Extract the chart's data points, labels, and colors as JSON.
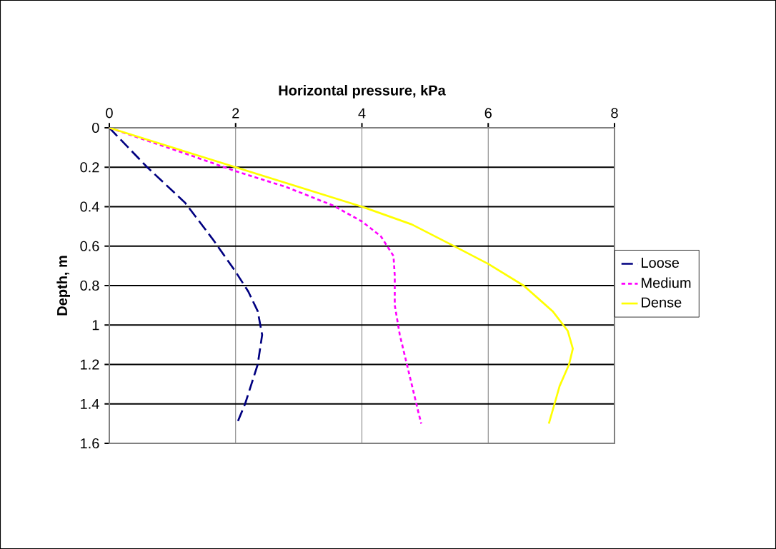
{
  "chart_data": {
    "type": "line",
    "xlabel": "Horizontal pressure, kPa",
    "ylabel": "Depth, m",
    "xlim": [
      0,
      8
    ],
    "xticks": [
      0,
      2,
      4,
      6,
      8
    ],
    "ylim": [
      1.6,
      0
    ],
    "yticks": [
      0,
      0.2,
      0.4,
      0.6,
      0.8,
      1,
      1.2,
      1.4,
      1.6
    ],
    "grid": true,
    "legend": "right",
    "marker": "none",
    "series": [
      {
        "name": "Loose",
        "color": "#000080",
        "line_style": "dashed",
        "x": [
          0,
          0.6,
          1.2,
          1.65,
          2.0,
          2.2,
          2.35,
          2.42,
          2.35,
          2.25,
          2.15,
          2.02
        ],
        "values": [
          0,
          0.2,
          0.38,
          0.57,
          0.73,
          0.83,
          0.93,
          1.05,
          1.2,
          1.3,
          1.4,
          1.5
        ]
      },
      {
        "name": "Medium",
        "color": "#ff00ff",
        "line_style": "dotted",
        "x": [
          0,
          1.2,
          2.0,
          2.8,
          3.55,
          4.0,
          4.3,
          4.5,
          4.52,
          4.52,
          4.6,
          4.75,
          4.9,
          4.94
        ],
        "values": [
          0,
          0.13,
          0.22,
          0.3,
          0.395,
          0.475,
          0.55,
          0.65,
          0.75,
          0.9,
          1.05,
          1.25,
          1.45,
          1.5
        ]
      },
      {
        "name": "Dense",
        "color": "#ffff00",
        "line_style": "solid",
        "x": [
          0,
          2,
          4,
          4.79,
          5.43,
          6.0,
          6.56,
          7.02,
          7.26,
          7.34,
          7.28,
          7.13,
          7.05,
          6.96
        ],
        "values": [
          0,
          0.2,
          0.4,
          0.49,
          0.595,
          0.69,
          0.8,
          0.93,
          1.03,
          1.12,
          1.2,
          1.31,
          1.4,
          1.5
        ]
      }
    ]
  }
}
